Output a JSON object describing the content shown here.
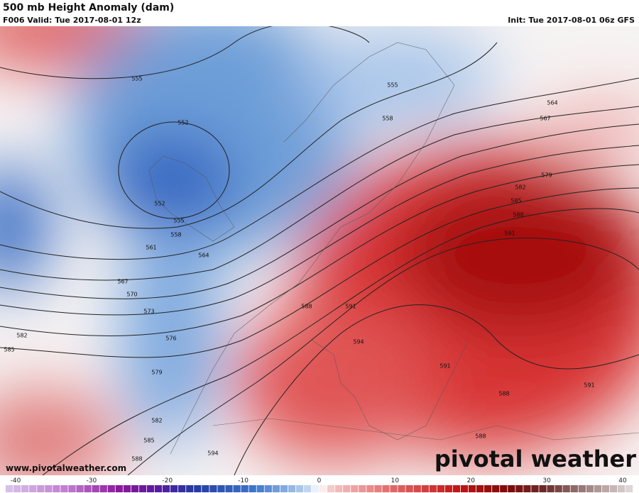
{
  "header": {
    "title": "500 mb Height Anomaly (dam)",
    "valid": "F006 Valid: Tue 2017-08-01 12z",
    "init": "Init: Tue 2017-08-01 06z GFS"
  },
  "contour_labels": [
    "555",
    "552",
    "555",
    "558",
    "564",
    "567",
    "579",
    "582",
    "585",
    "588",
    "591",
    "552",
    "555",
    "558",
    "561",
    "564",
    "567",
    "570",
    "573",
    "576",
    "582",
    "585",
    "579",
    "582",
    "585",
    "588",
    "594",
    "588",
    "591",
    "594",
    "591",
    "591",
    "588",
    "588"
  ],
  "colorbar": {
    "ticks": [
      -40,
      -30,
      -20,
      -10,
      0,
      10,
      20,
      30,
      40
    ]
  },
  "footer": {
    "website": "www.pivotalweather.com",
    "brand": "pivotal weather"
  }
}
